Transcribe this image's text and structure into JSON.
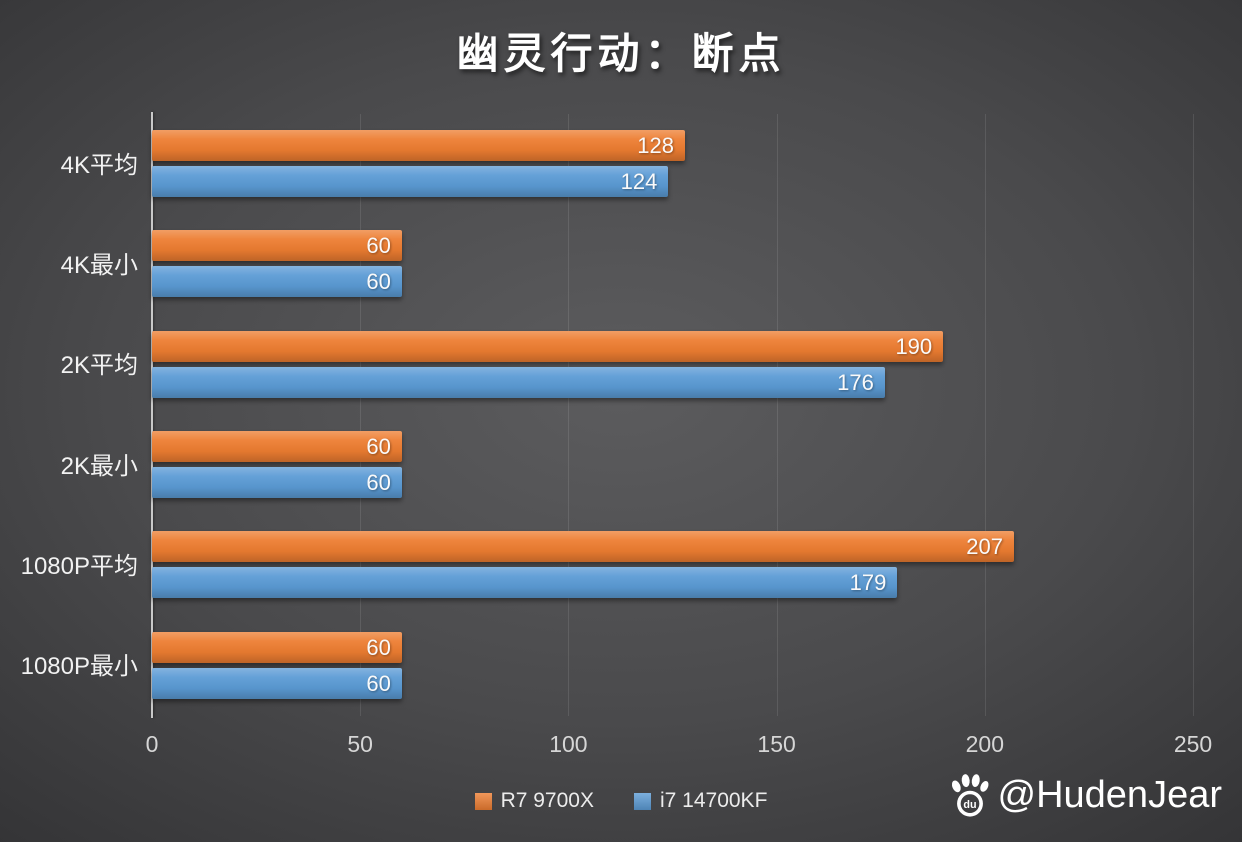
{
  "chart_data": {
    "type": "bar",
    "orientation": "horizontal",
    "title": "幽灵行动：断点",
    "categories": [
      "4K平均",
      "4K最小",
      "2K平均",
      "2K最小",
      "1080P平均",
      "1080P最小"
    ],
    "series": [
      {
        "name": "R7 9700X",
        "color": "#ED7D31",
        "values": [
          128,
          60,
          190,
          60,
          207,
          60
        ]
      },
      {
        "name": "i7 14700KF",
        "color": "#5B9BD5",
        "values": [
          124,
          60,
          176,
          60,
          179,
          60
        ]
      }
    ],
    "xlabel": "",
    "ylabel": "",
    "xlim": [
      0,
      250
    ],
    "xticks": [
      0,
      50,
      100,
      150,
      200,
      250
    ],
    "grid": true,
    "legend_position": "bottom",
    "value_labels": "inside-end"
  },
  "watermark": {
    "icon": "baidu-paw-icon",
    "text": "@HudenJear"
  },
  "colors": {
    "background_center": "#5c5c5e",
    "background_edge": "#323234",
    "title_text": "#ffffff",
    "category_text": "#f2f2f2",
    "tick_text": "#d6d6d6",
    "axis_line": "#c9c9c9",
    "gridline": "rgba(255,255,255,0.10)"
  }
}
